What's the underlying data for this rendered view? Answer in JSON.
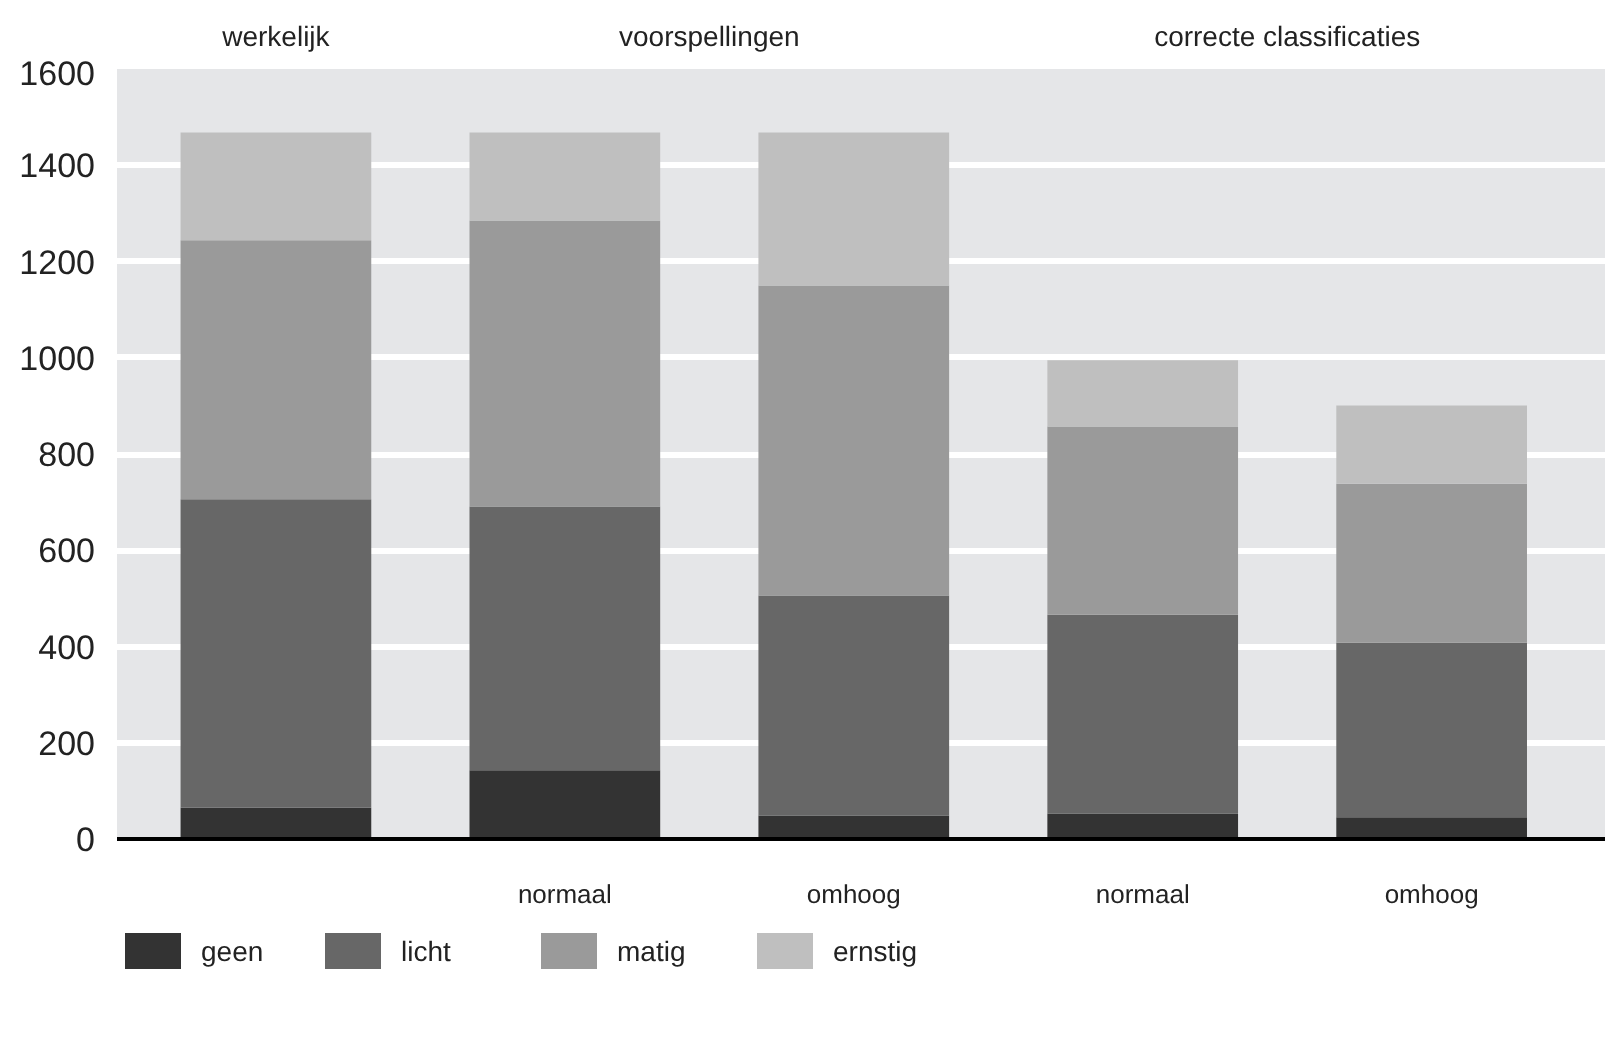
{
  "chart_data": {
    "type": "bar",
    "stacked": true,
    "categories": [
      null,
      "normaal",
      "omhoog",
      "normaal",
      "omhoog"
    ],
    "annotations": [
      "werkelijk",
      "voorspellingen",
      "correcte classificaties"
    ],
    "series": [
      {
        "name": "geen",
        "color": "#333333",
        "values": [
          65,
          143,
          49,
          53,
          45
        ]
      },
      {
        "name": "licht",
        "color": "#676767",
        "values": [
          641,
          548,
          457,
          413,
          363
        ]
      },
      {
        "name": "matig",
        "color": "#9a9a9a",
        "values": [
          538,
          594,
          644,
          391,
          330
        ]
      },
      {
        "name": "ernstig",
        "color": "#bfbfbf",
        "values": [
          224,
          183,
          318,
          138,
          163
        ]
      }
    ],
    "ylim": [
      0,
      1600
    ],
    "yticks": [
      0,
      200,
      400,
      600,
      800,
      1000,
      1200,
      1400,
      1600
    ],
    "grid": "y",
    "legend": "bottom"
  }
}
